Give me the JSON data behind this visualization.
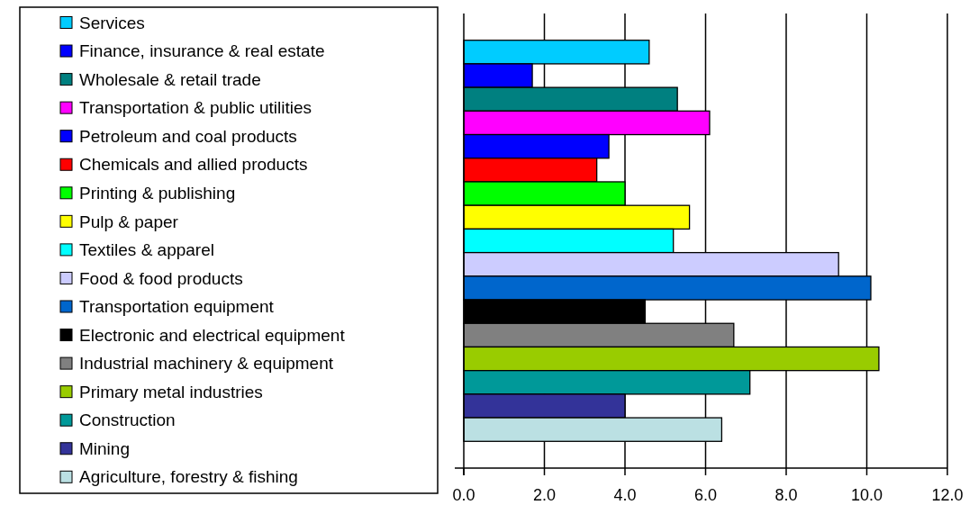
{
  "chart_data": {
    "type": "bar",
    "orientation": "horizontal",
    "categories": [
      null
    ],
    "series": [
      {
        "name": "Services",
        "color": "#00ccff",
        "values": [
          4.6
        ]
      },
      {
        "name": "Finance, insurance & real estate",
        "color": "#0000ff",
        "values": [
          1.7
        ]
      },
      {
        "name": "Wholesale & retail trade",
        "color": "#008080",
        "values": [
          5.3
        ]
      },
      {
        "name": "Transportation & public utilities",
        "color": "#ff00ff",
        "values": [
          6.1
        ]
      },
      {
        "name": "Petroleum and coal products",
        "color": "#0000ff",
        "values": [
          3.6
        ]
      },
      {
        "name": "Chemicals and allied products",
        "color": "#ff0000",
        "values": [
          3.3
        ]
      },
      {
        "name": "Printing & publishing",
        "color": "#00ff00",
        "values": [
          4.0
        ]
      },
      {
        "name": "Pulp & paper",
        "color": "#ffff00",
        "values": [
          5.6
        ]
      },
      {
        "name": "Textiles & apparel",
        "color": "#00ffff",
        "values": [
          5.2
        ]
      },
      {
        "name": "Food & food products",
        "color": "#ccccff",
        "values": [
          9.3
        ]
      },
      {
        "name": "Transportation equipment",
        "color": "#0066cc",
        "values": [
          10.1
        ]
      },
      {
        "name": "Electronic and electrical equipment",
        "color": "#000000",
        "values": [
          4.5
        ]
      },
      {
        "name": "Industrial machinery & equipment",
        "color": "#808080",
        "values": [
          6.7
        ]
      },
      {
        "name": "Primary metal industries",
        "color": "#99cc00",
        "values": [
          10.3
        ]
      },
      {
        "name": "Construction",
        "color": "#009999",
        "values": [
          7.1
        ]
      },
      {
        "name": "Mining",
        "color": "#333399",
        "values": [
          4.0
        ]
      },
      {
        "name": "Agriculture, forestry & fishing",
        "color": "#bbe0e3",
        "values": [
          6.4
        ]
      }
    ],
    "xlim": [
      0,
      12
    ],
    "xticks": [
      {
        "value": 0,
        "label": "0.0"
      },
      {
        "value": 2,
        "label": "2.0"
      },
      {
        "value": 4,
        "label": "4.0"
      },
      {
        "value": 6,
        "label": "6.0"
      },
      {
        "value": 8,
        "label": "8.0"
      },
      {
        "value": 10,
        "label": "10.0"
      },
      {
        "value": 12,
        "label": "12.0"
      }
    ],
    "grid": "x",
    "legend": "left",
    "tick_labels": "x"
  }
}
